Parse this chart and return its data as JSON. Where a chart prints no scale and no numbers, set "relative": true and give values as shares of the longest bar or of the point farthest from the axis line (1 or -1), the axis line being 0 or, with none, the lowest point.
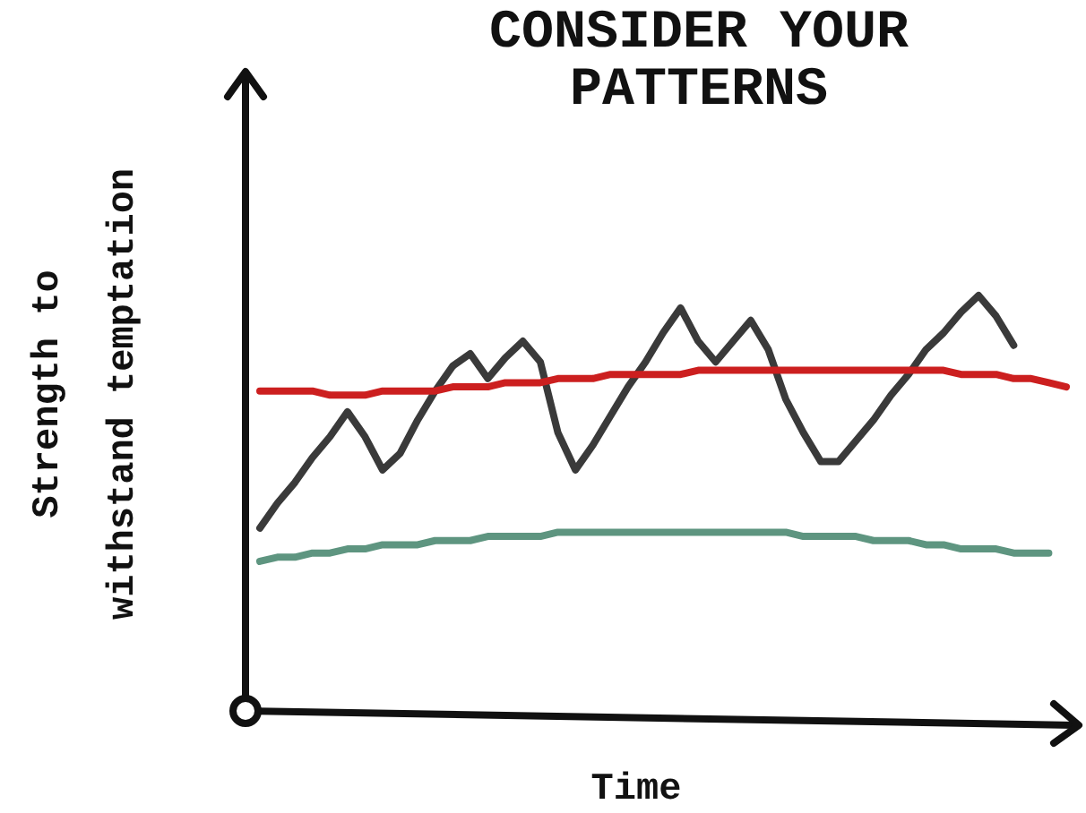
{
  "chart_data": {
    "type": "line",
    "title": "CONSIDER YOUR PATTERNS",
    "xlabel": "Time",
    "ylabel": "Strength to withstand temptation",
    "relative": true,
    "categories": [
      null,
      null,
      null,
      null,
      null,
      null,
      null,
      null,
      null,
      null,
      null,
      null,
      null,
      null,
      null,
      null,
      null,
      null,
      null,
      null,
      null,
      null,
      null,
      null,
      null,
      null,
      null,
      null,
      null,
      null,
      null,
      null,
      null,
      null,
      null,
      null,
      null,
      null,
      null,
      null,
      null,
      null,
      null,
      null,
      null,
      null,
      null
    ],
    "series": [
      {
        "color": "#3a3a3a",
        "values": [
          0.44,
          0.5,
          0.55,
          0.61,
          0.66,
          0.72,
          0.66,
          0.58,
          0.62,
          0.7,
          0.77,
          0.83,
          0.86,
          0.8,
          0.85,
          0.89,
          0.84,
          0.67,
          0.58,
          0.64,
          0.71,
          0.78,
          0.84,
          0.91,
          0.97,
          0.89,
          0.84,
          0.89,
          0.94,
          0.87,
          0.75,
          0.67,
          0.6,
          0.6,
          0.65,
          0.7,
          0.76,
          0.81,
          0.87,
          0.91,
          0.96,
          1.0,
          0.95,
          0.88,
          null,
          null,
          null
        ]
      },
      {
        "color": "#cc1f1f",
        "values": [
          0.77,
          0.77,
          0.77,
          0.77,
          0.76,
          0.76,
          0.76,
          0.77,
          0.77,
          0.77,
          0.77,
          0.78,
          0.78,
          0.78,
          0.79,
          0.79,
          0.79,
          0.8,
          0.8,
          0.8,
          0.81,
          0.81,
          0.81,
          0.81,
          0.81,
          0.82,
          0.82,
          0.82,
          0.82,
          0.82,
          0.82,
          0.82,
          0.82,
          0.82,
          0.82,
          0.82,
          0.82,
          0.82,
          0.82,
          0.82,
          0.81,
          0.81,
          0.81,
          0.8,
          0.8,
          0.79,
          0.78
        ]
      },
      {
        "color": "#5e9580",
        "values": [
          0.36,
          0.37,
          0.37,
          0.38,
          0.38,
          0.39,
          0.39,
          0.4,
          0.4,
          0.4,
          0.41,
          0.41,
          0.41,
          0.42,
          0.42,
          0.42,
          0.42,
          0.43,
          0.43,
          0.43,
          0.43,
          0.43,
          0.43,
          0.43,
          0.43,
          0.43,
          0.43,
          0.43,
          0.43,
          0.43,
          0.43,
          0.42,
          0.42,
          0.42,
          0.42,
          0.41,
          0.41,
          0.41,
          0.4,
          0.4,
          0.39,
          0.39,
          0.39,
          0.38,
          0.38,
          0.38,
          null
        ]
      }
    ]
  }
}
